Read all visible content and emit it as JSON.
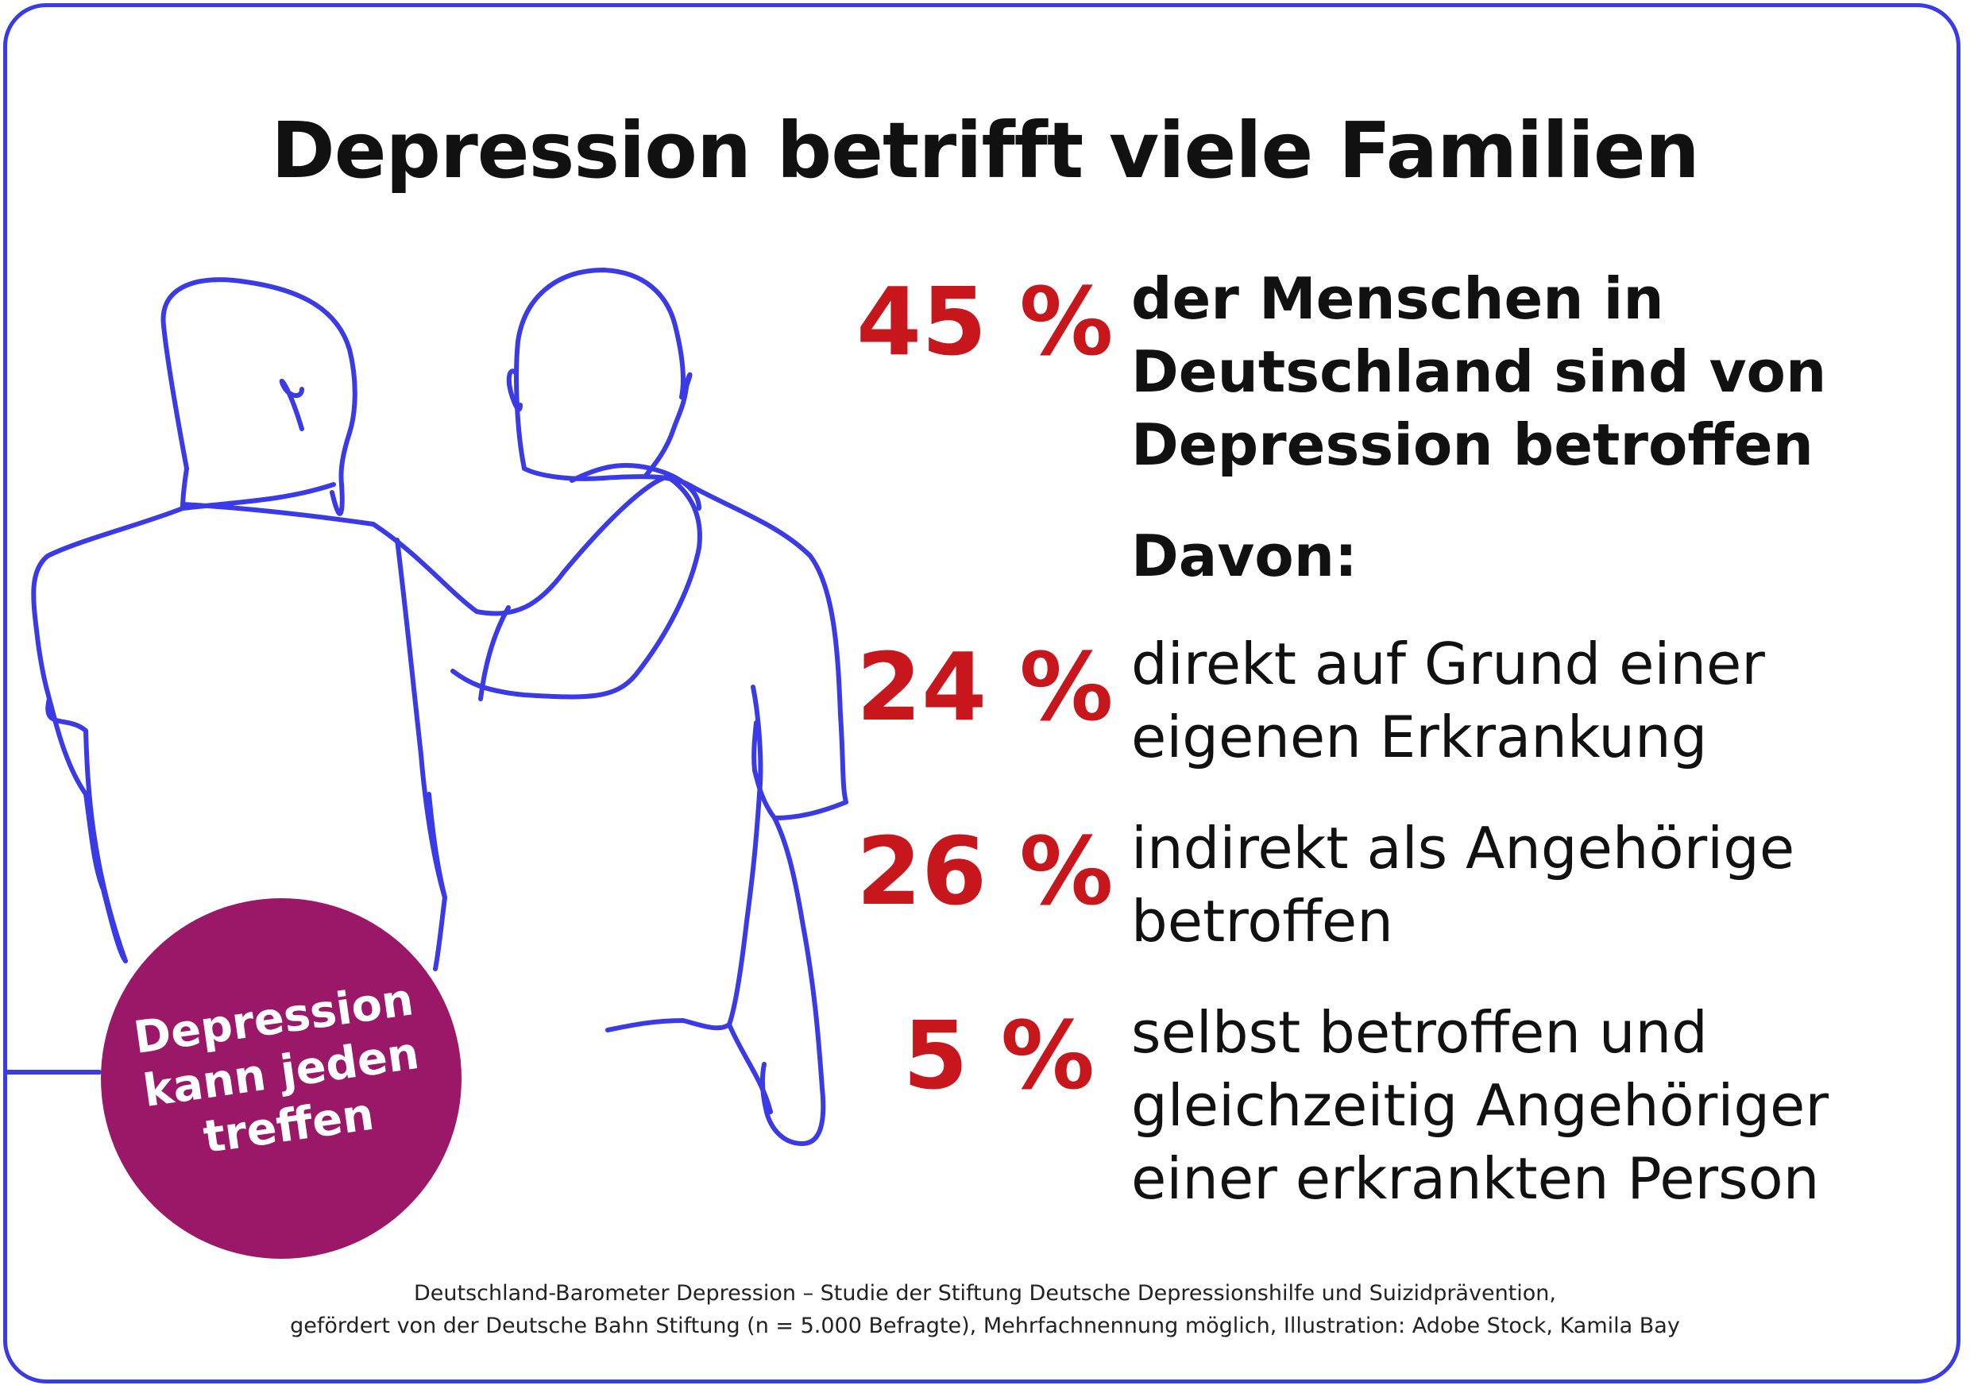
{
  "title": "Depression betrifft viele Familien",
  "colors": {
    "frame": "#3a3ae6",
    "illustration_line": "#3a3ae6",
    "percentage": "#c8161d",
    "badge": "#9b1868",
    "text": "#111111"
  },
  "illustration": {
    "icon": "two-men-embracing-line-drawing"
  },
  "main_stat": {
    "value": "45 %",
    "lines": [
      "der Menschen in",
      "Deutschland sind von",
      "Depression betroffen"
    ]
  },
  "davon_label": "Davon:",
  "sub_stats": [
    {
      "value": "24 %",
      "lines": [
        "direkt auf Grund einer",
        "eigenen Erkrankung"
      ]
    },
    {
      "value": "26 %",
      "lines": [
        "indirekt als Angehörige",
        "betroffen"
      ]
    },
    {
      "value": "5 %",
      "lines": [
        "selbst betroffen und",
        "gleichzeitig Angehöriger",
        "einer erkrankten Person"
      ]
    }
  ],
  "badge": {
    "lines": [
      "Depression",
      "kann jeden",
      "treffen"
    ]
  },
  "footer": {
    "line1": "Deutschland-Barometer Depression – Studie der Stiftung Deutsche Depressionshilfe und Suizidprävention,",
    "line2": "gefördert von der Deutsche Bahn Stiftung (n = 5.000 Befragte), Mehrfachnennung möglich, Illustration: Adobe Stock, Kamila Bay"
  }
}
